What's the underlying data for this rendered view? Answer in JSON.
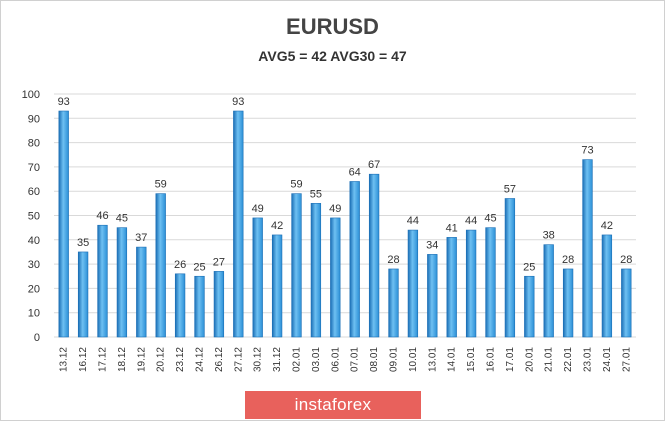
{
  "chart_data": {
    "type": "bar",
    "title": "EURUSD",
    "subtitle": "AVG5 = 42 AVG30 = 47",
    "xlabel": "",
    "ylabel": "",
    "ylim": [
      0,
      100
    ],
    "yticks": [
      0,
      10,
      20,
      30,
      40,
      50,
      60,
      70,
      80,
      90,
      100
    ],
    "grid": true,
    "legend": "none",
    "categories": [
      "13.12",
      "16.12",
      "17.12",
      "18.12",
      "19.12",
      "20.12",
      "23.12",
      "24.12",
      "26.12",
      "27.12",
      "30.12",
      "31.12",
      "02.01",
      "03.01",
      "06.01",
      "07.01",
      "08.01",
      "09.01",
      "10.01",
      "13.01",
      "14.01",
      "15.01",
      "16.01",
      "17.01",
      "20.01",
      "21.01",
      "22.01",
      "23.01",
      "24.01",
      "27.01"
    ],
    "values": [
      93,
      35,
      46,
      45,
      37,
      59,
      26,
      25,
      27,
      93,
      49,
      42,
      59,
      55,
      49,
      64,
      67,
      28,
      44,
      34,
      41,
      44,
      45,
      57,
      25,
      38,
      28,
      73,
      42,
      28
    ]
  },
  "colors": {
    "bar": "#2b8fd6",
    "bar_dark": "#1a6eb5",
    "bar_light": "#6ec0f2",
    "brand_bg": "#e8615c",
    "grid": "#d9d9d9"
  },
  "brand": {
    "text": "instaforex"
  }
}
